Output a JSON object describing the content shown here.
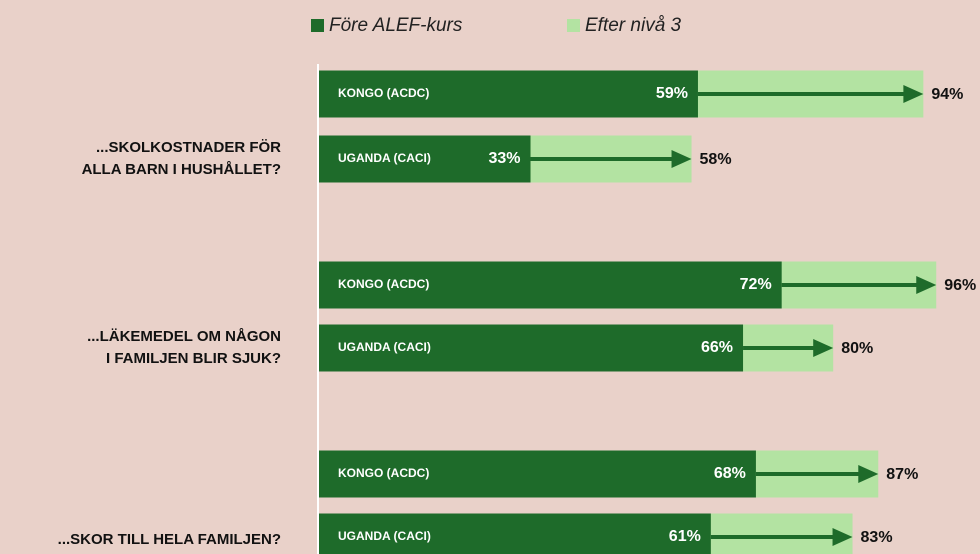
{
  "chart_data": {
    "type": "bar",
    "orientation": "horizontal",
    "categories": [
      "KONGO (ACDC)",
      "UGANDA (CACI)",
      "KONGO (ACDC)",
      "UGANDA (CACI)",
      "KONGO (ACDC)",
      "UGANDA (CACI)"
    ],
    "groups": [
      {
        "lines": [
          "...SKOLKOSTNADER FÖR",
          "ALLA BARN I HUSHÅLLET?"
        ]
      },
      {
        "lines": [
          "...LÄKEMEDEL OM NÅGON",
          "I FAMILJEN BLIR SJUK?"
        ]
      },
      {
        "lines": [
          "...SKOR TILL HELA FAMILJEN?"
        ]
      }
    ],
    "series": [
      {
        "name": "Före ALEF-kurs",
        "color": "#1e6b2a",
        "values": [
          59,
          33,
          72,
          66,
          68,
          61
        ],
        "value_labels": [
          "59%",
          "33%",
          "72%",
          "66%",
          "68%",
          "61%"
        ]
      },
      {
        "name": "Efter nivå 3",
        "color": "#b3e3a2",
        "values": [
          94,
          58,
          96,
          80,
          87,
          83
        ],
        "value_labels": [
          "94%",
          "58%",
          "96%",
          "80%",
          "87%",
          "83%"
        ]
      }
    ],
    "xlim": [
      0,
      100
    ],
    "legend": "top"
  }
}
